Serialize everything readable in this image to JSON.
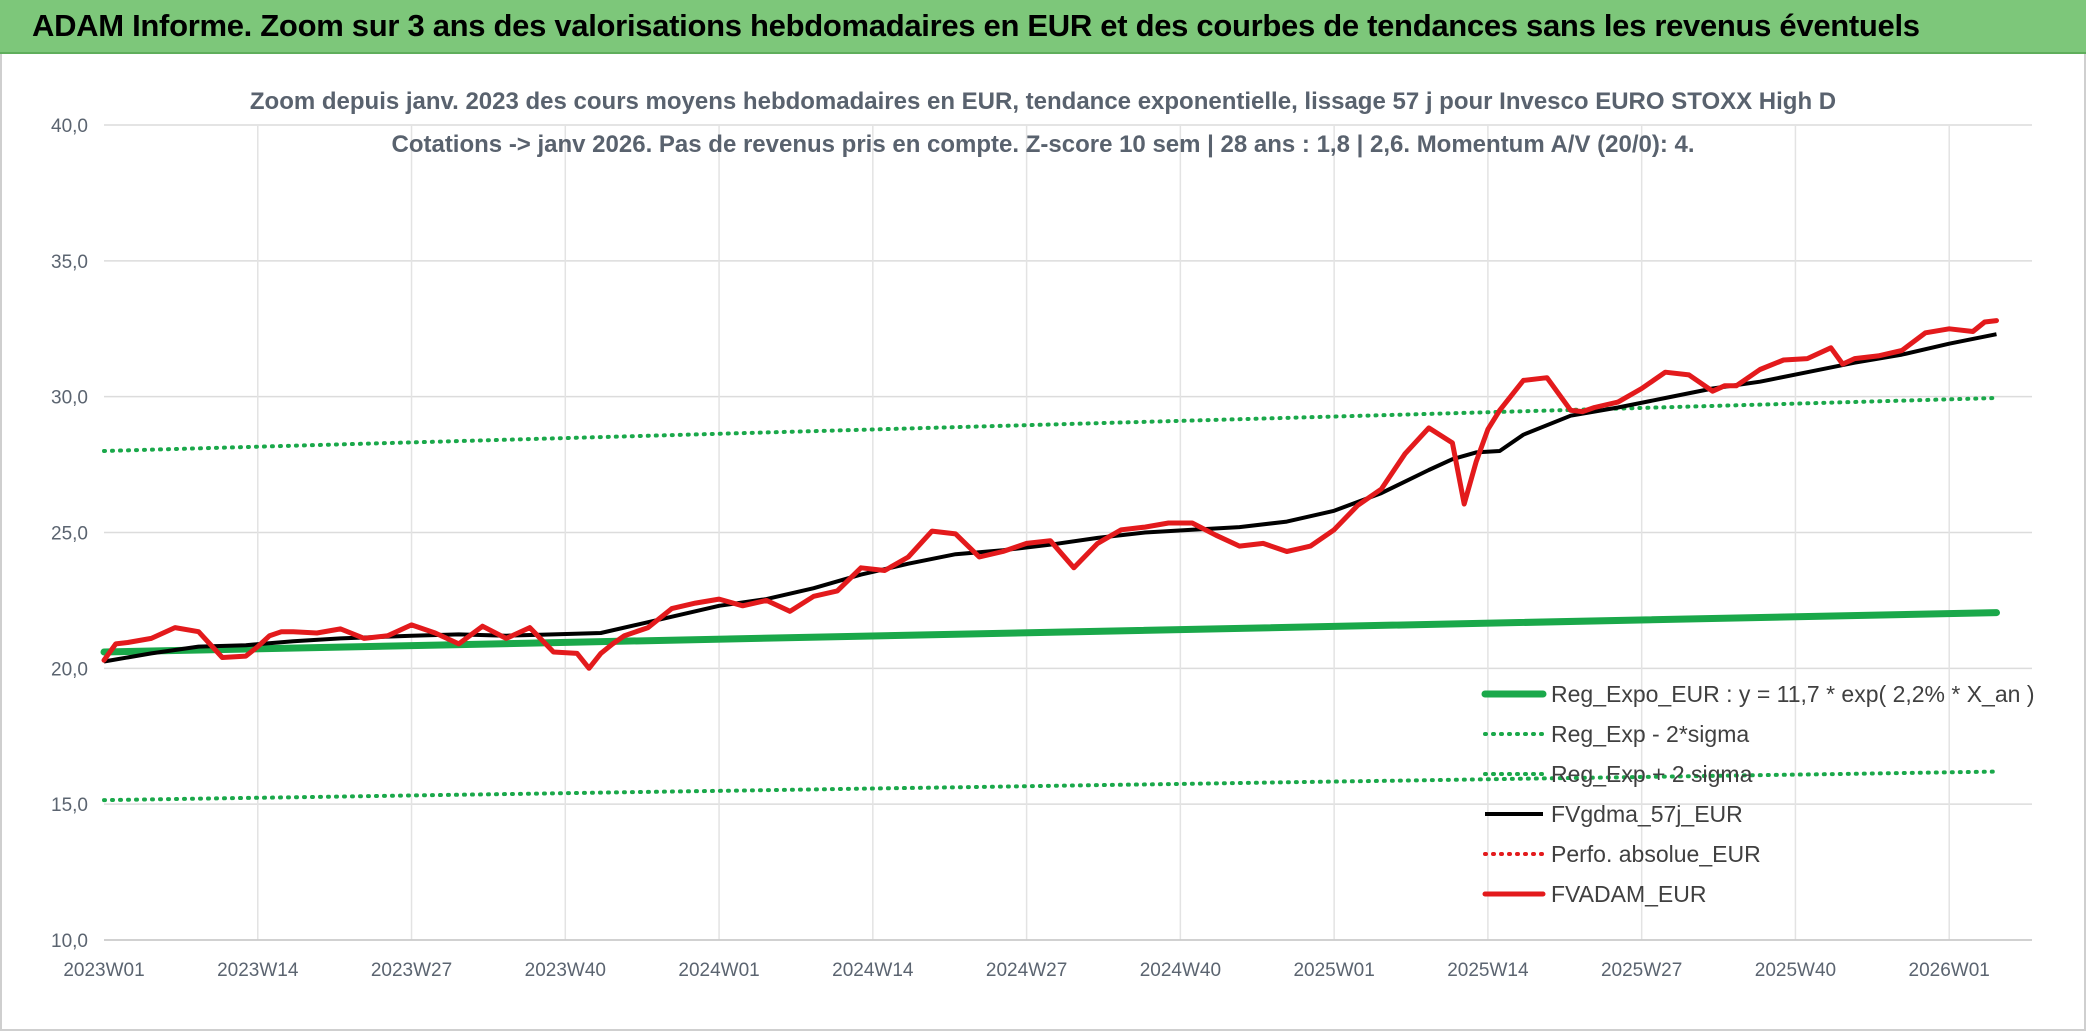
{
  "banner": {
    "title": "ADAM Informe. Zoom sur 3 ans des valorisations hebdomadaires en EUR et des courbes de tendances sans les revenus éventuels"
  },
  "chart_data": {
    "type": "line",
    "title": "Zoom depuis janv. 2023 des cours moyens hebdomadaires en EUR, tendance exponentielle, lissage 57 j pour Invesco EURO STOXX High D",
    "subtitle": "Cotations -> janv 2026. Pas de revenus pris en compte. Z-score 10 sem | 28 ans : 1,8 | 2,6. Momentum A/V (20/0): 4.",
    "xlabel": "",
    "ylabel": "",
    "ylim": [
      10,
      40
    ],
    "y_ticks": [
      "10,0",
      "15,0",
      "20,0",
      "25,0",
      "30,0",
      "35,0",
      "40,0"
    ],
    "x_range": [
      0,
      163
    ],
    "x_ticks": [
      {
        "label": "2023W01",
        "i": 0
      },
      {
        "label": "2023W14",
        "i": 13
      },
      {
        "label": "2023W27",
        "i": 26
      },
      {
        "label": "2023W40",
        "i": 39
      },
      {
        "label": "2024W01",
        "i": 52
      },
      {
        "label": "2024W14",
        "i": 65
      },
      {
        "label": "2024W27",
        "i": 78
      },
      {
        "label": "2024W40",
        "i": 91
      },
      {
        "label": "2025W01",
        "i": 104
      },
      {
        "label": "2025W14",
        "i": 117
      },
      {
        "label": "2025W27",
        "i": 130
      },
      {
        "label": "2025W40",
        "i": 143
      },
      {
        "label": "2026W01",
        "i": 156
      }
    ],
    "grid": true,
    "legend_position": "bottom-right",
    "series": [
      {
        "name": "Reg_Expo_EUR : y = 11,7 * exp( 2,2% *  X_an )",
        "color": "#1aa84a",
        "style": "thick",
        "x": [
          0,
          160
        ],
        "values": [
          20.6,
          22.05
        ]
      },
      {
        "name": "Reg_Exp - 2*sigma",
        "color": "#1aa84a",
        "style": "dotted",
        "x": [
          0,
          160
        ],
        "values": [
          28.0,
          29.95
        ]
      },
      {
        "name": "Reg_Exp + 2 sigma",
        "color": "#1aa84a",
        "style": "dotted",
        "x": [
          0,
          160
        ],
        "values": [
          15.15,
          16.2
        ]
      },
      {
        "name": "FVgdma_57j_EUR",
        "color": "#000000",
        "style": "solid",
        "x": [
          0,
          4,
          8,
          12,
          16,
          20,
          26,
          30,
          34,
          38,
          42,
          46,
          52,
          56,
          60,
          64,
          68,
          72,
          76,
          80,
          84,
          88,
          92,
          96,
          100,
          104,
          108,
          112,
          114,
          116,
          118,
          120,
          124,
          128,
          132,
          136,
          140,
          144,
          148,
          152,
          156,
          160
        ],
        "values": [
          20.25,
          20.55,
          20.8,
          20.85,
          21.0,
          21.1,
          21.2,
          21.25,
          21.2,
          21.25,
          21.3,
          21.7,
          22.3,
          22.55,
          22.95,
          23.45,
          23.85,
          24.2,
          24.35,
          24.55,
          24.8,
          25.0,
          25.1,
          25.2,
          25.4,
          25.8,
          26.45,
          27.3,
          27.7,
          27.95,
          28.0,
          28.6,
          29.3,
          29.6,
          29.95,
          30.3,
          30.55,
          30.9,
          31.25,
          31.55,
          31.95,
          32.3
        ]
      },
      {
        "name": "Perfo. absolue_EUR",
        "color": "#e31a1c",
        "style": "dotted",
        "x": [],
        "values": []
      },
      {
        "name": "FVADAM_EUR",
        "color": "#e31a1c",
        "style": "thick",
        "x": [
          0,
          1,
          2,
          4,
          6,
          8,
          10,
          12,
          13,
          14,
          15,
          16,
          18,
          20,
          22,
          24,
          26,
          28,
          30,
          32,
          34,
          36,
          38,
          40,
          41,
          42,
          43,
          44,
          46,
          48,
          50,
          52,
          54,
          56,
          58,
          60,
          62,
          64,
          66,
          68,
          70,
          72,
          74,
          76,
          78,
          80,
          82,
          84,
          85,
          86,
          88,
          90,
          92,
          94,
          96,
          98,
          100,
          101,
          102,
          104,
          106,
          108,
          110,
          112,
          114,
          115,
          116,
          117,
          118,
          120,
          122,
          124,
          125,
          126,
          128,
          130,
          132,
          134,
          136,
          137,
          138,
          140,
          142,
          144,
          146,
          147,
          148,
          150,
          152,
          154,
          156,
          158,
          159,
          160
        ],
        "values": [
          20.3,
          20.9,
          20.95,
          21.1,
          21.5,
          21.35,
          20.4,
          20.45,
          20.8,
          21.2,
          21.35,
          21.35,
          21.3,
          21.45,
          21.1,
          21.2,
          21.6,
          21.3,
          20.9,
          21.55,
          21.1,
          21.5,
          20.6,
          20.55,
          20.0,
          20.55,
          20.9,
          21.2,
          21.5,
          22.2,
          22.4,
          22.55,
          22.3,
          22.5,
          22.1,
          22.65,
          22.85,
          23.7,
          23.6,
          24.1,
          25.05,
          24.95,
          24.1,
          24.3,
          24.6,
          24.7,
          23.7,
          24.6,
          24.85,
          25.1,
          25.2,
          25.35,
          25.35,
          24.9,
          24.5,
          24.6,
          24.3,
          24.4,
          24.5,
          25.1,
          26.0,
          26.6,
          27.9,
          28.85,
          28.3,
          26.05,
          27.6,
          28.8,
          29.5,
          30.6,
          30.7,
          29.5,
          29.45,
          29.6,
          29.8,
          30.3,
          30.9,
          30.8,
          30.2,
          30.4,
          30.4,
          31.0,
          31.35,
          31.4,
          31.8,
          31.2,
          31.4,
          31.5,
          31.7,
          32.35,
          32.5,
          32.4,
          32.75,
          32.8
        ]
      }
    ]
  }
}
